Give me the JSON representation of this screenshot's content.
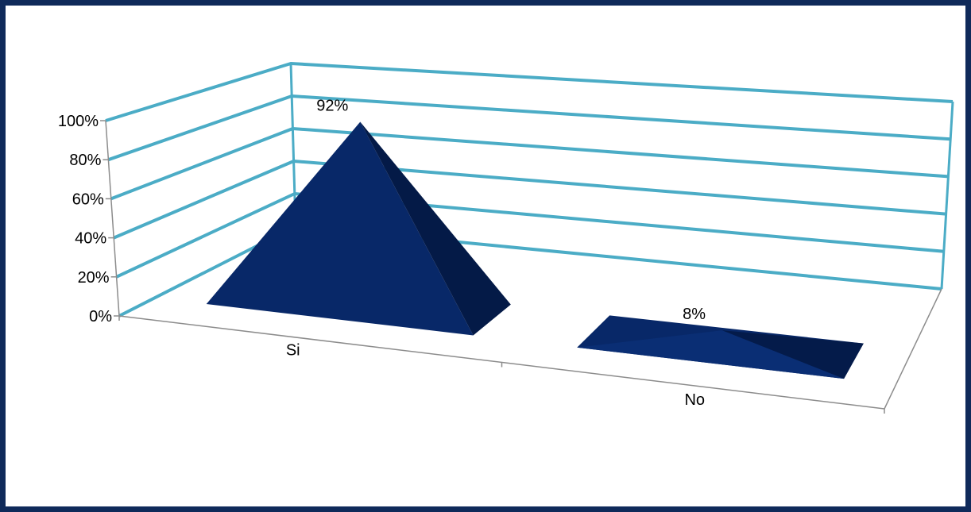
{
  "chart_data": {
    "type": "bar",
    "shape": "pyramid-3d",
    "categories": [
      "Si",
      "No"
    ],
    "values": [
      92,
      8
    ],
    "data_labels": [
      "92%",
      "8%"
    ],
    "ylim": [
      0,
      100
    ],
    "yticks": [
      "0%",
      "20%",
      "40%",
      "60%",
      "80%",
      "100%"
    ],
    "title": "",
    "xlabel": "",
    "ylabel": "",
    "grid": true,
    "colors": {
      "frame": "#0f2a5a",
      "gridline": "#4bacc6",
      "axis": "#8c8c8c",
      "bar_front": "#082868",
      "bar_side": "#041a47"
    }
  }
}
